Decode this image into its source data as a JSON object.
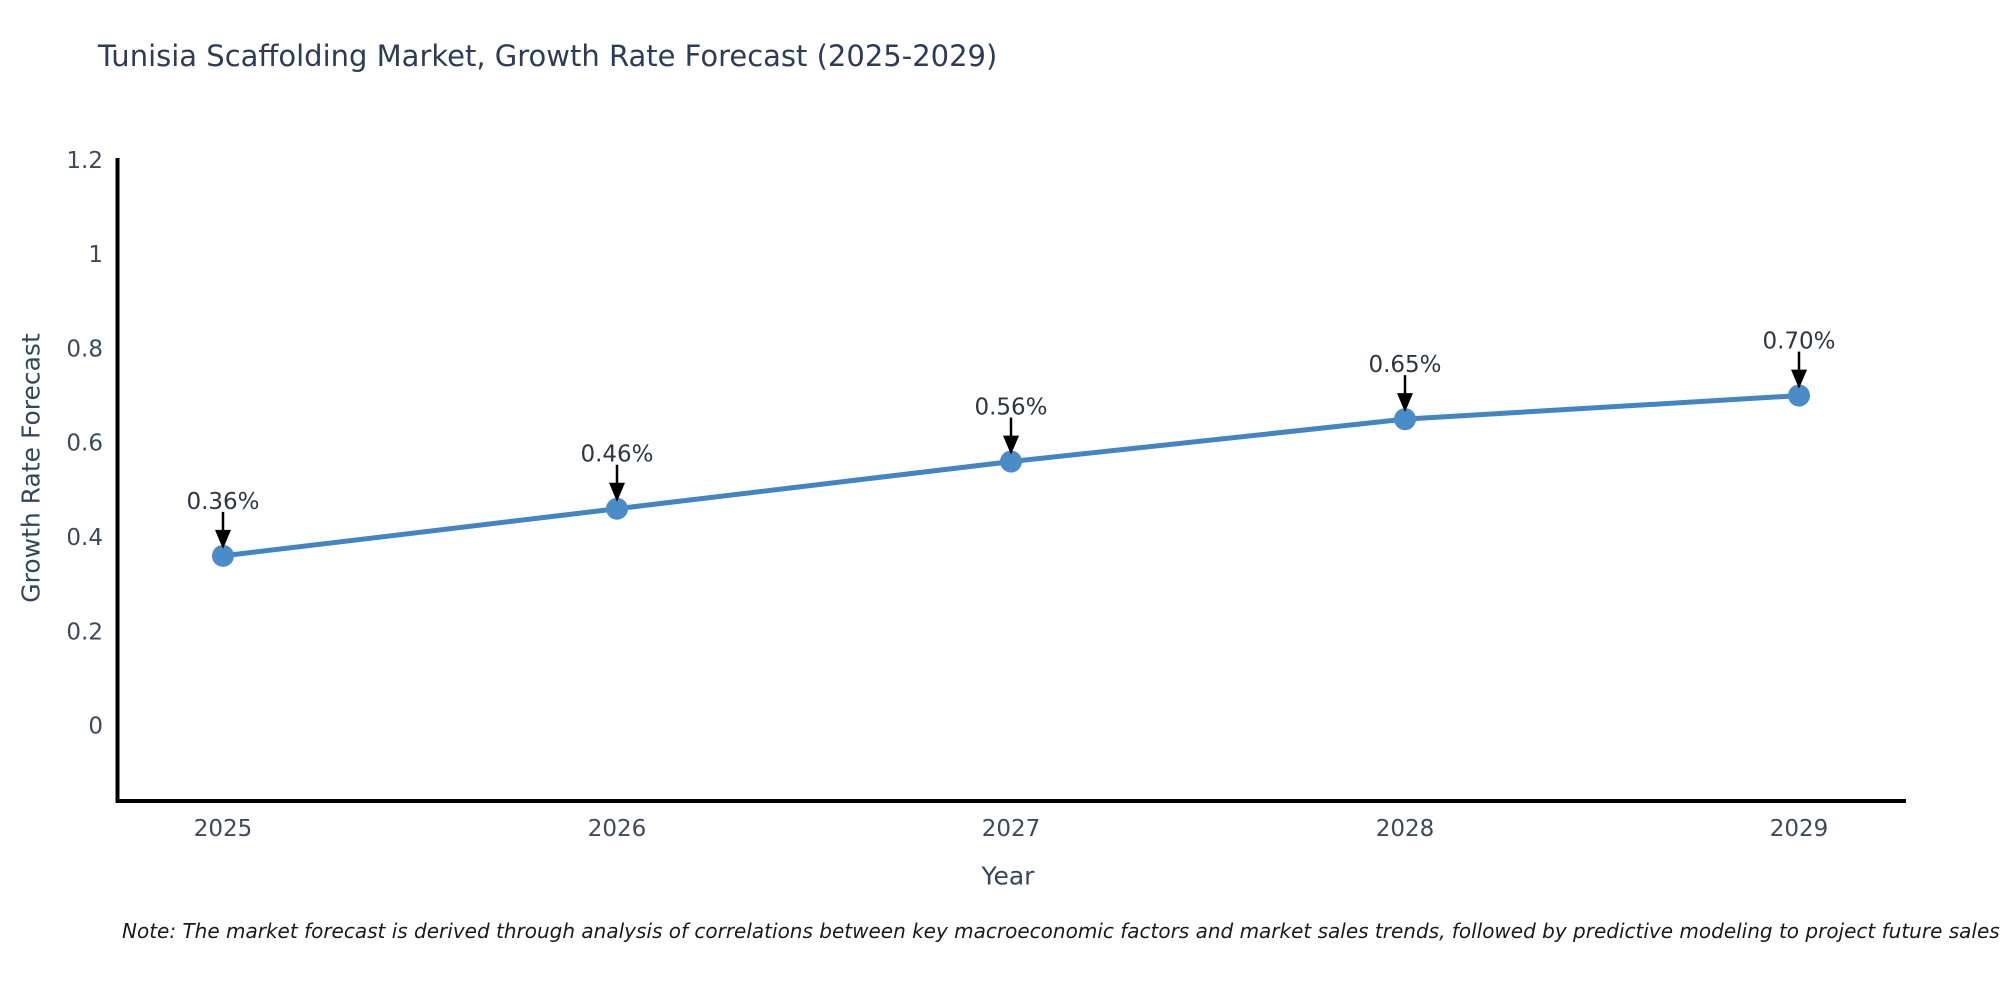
{
  "chart_data": {
    "type": "line",
    "title": "Tunisia Scaffolding Market, Growth Rate Forecast (2025-2029)",
    "xlabel": "Year",
    "ylabel": "Growth Rate Forecast",
    "categories": [
      "2025",
      "2026",
      "2027",
      "2028",
      "2029"
    ],
    "series": [
      {
        "name": "Growth Rate Forecast",
        "values": [
          0.36,
          0.46,
          0.56,
          0.65,
          0.7
        ],
        "point_labels": [
          "0.36%",
          "0.46%",
          "0.56%",
          "0.65%",
          "0.70%"
        ]
      }
    ],
    "yticks": [
      0,
      0.2,
      0.4,
      0.6,
      0.8,
      1,
      1.2
    ],
    "ytick_labels": [
      "0",
      "0.2",
      "0.4",
      "0.6",
      "0.8",
      "1",
      "1.2"
    ],
    "ylim": [
      -0.16,
      1.204
    ],
    "grid": false,
    "legend": "none",
    "annotation_style": "percent value labels above points with downward black arrows",
    "colors": {
      "line": "#4285c2",
      "marker": "#4a8cc8",
      "arrow": "#000000",
      "axis": "#000000",
      "title_text": "#2e3c55",
      "tick_text": "#3d4a5c",
      "annotation_text": "#2d3643",
      "note_text": "#1a1a1a",
      "background": "#ffffff"
    },
    "note": "Note: The market forecast is derived through analysis of correlations between key macroeconomic factors and market sales trends, followed by predictive modeling to project future sales"
  }
}
